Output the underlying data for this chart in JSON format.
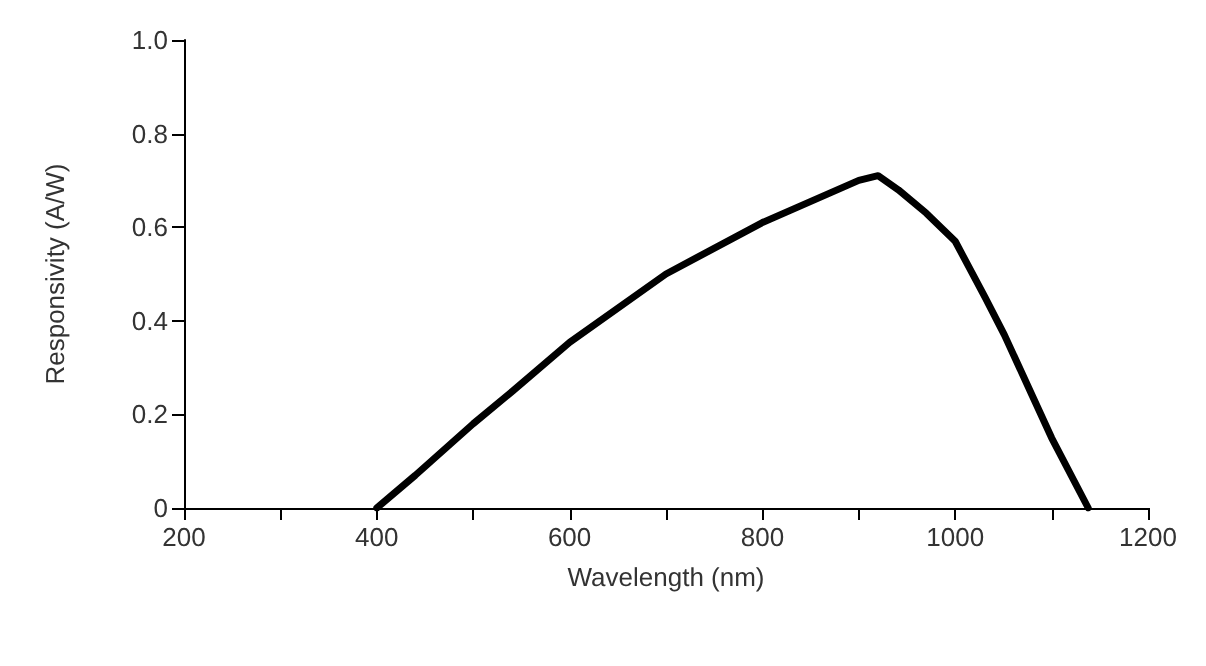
{
  "chart_data": {
    "type": "line",
    "xlabel": "Wavelength (nm)",
    "ylabel": "Responsivity (A/W)",
    "x": [
      400,
      440,
      500,
      541,
      600,
      700,
      800,
      900,
      920,
      941,
      970,
      1000,
      1031,
      1051,
      1080,
      1100,
      1138
    ],
    "series": [
      {
        "color": "#000000",
        "values": [
          0,
          0.07,
          0.18,
          0.25,
          0.354,
          0.5,
          0.61,
          0.7,
          0.71,
          0.68,
          0.63,
          0.57,
          0.45,
          0.37,
          0.24,
          0.15,
          0
        ]
      }
    ],
    "xlim": [
      200,
      1200
    ],
    "xticks": [
      200,
      {
        "value": 300,
        "label": null
      },
      400,
      {
        "value": 500,
        "label": null
      },
      600,
      {
        "value": 700,
        "label": null
      },
      800,
      {
        "value": 900,
        "label": null
      },
      1000,
      {
        "value": 1100,
        "label": null
      },
      1200
    ],
    "ylim": [
      0,
      1.0
    ],
    "yticks": [
      0,
      0.2,
      0.4,
      0.6,
      0.8,
      {
        "value": 1.0,
        "label": "1.0"
      }
    ],
    "grid": false,
    "marker": "none",
    "line_style": "solid"
  }
}
